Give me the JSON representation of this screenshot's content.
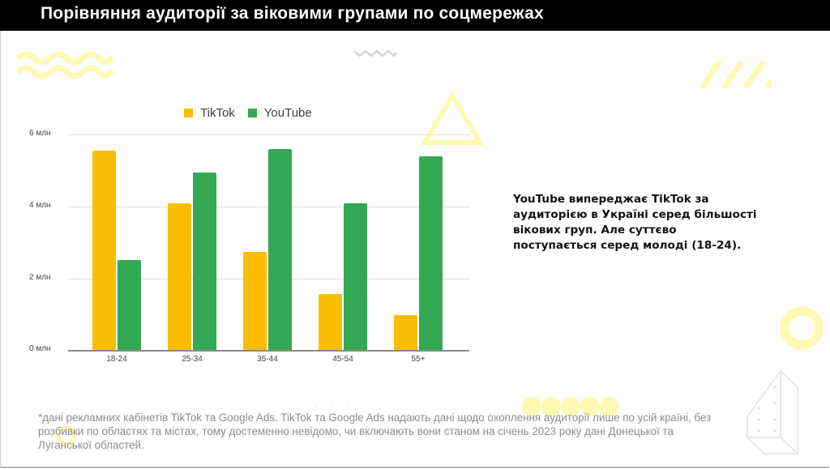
{
  "header": {
    "title": "Порівняння аудиторії за віковими групами по соцмережах"
  },
  "colors": {
    "tiktok": "#FBBC04",
    "youtube": "#34A853",
    "title_bar": "#000000",
    "decor_yellow": "#FFF9B3"
  },
  "chart_data": {
    "type": "bar",
    "title": "",
    "categories": [
      "18-24",
      "25-34",
      "35-44",
      "45-54",
      "55+"
    ],
    "series": [
      {
        "name": "TikTok",
        "color": "#FBBC04",
        "values": [
          5.55,
          4.08,
          2.72,
          1.55,
          0.97
        ]
      },
      {
        "name": "YouTube",
        "color": "#34A853",
        "values": [
          2.5,
          4.93,
          5.59,
          4.08,
          5.38
        ]
      }
    ],
    "xlabel": "",
    "ylabel": "",
    "unit": "млн",
    "ylim": [
      0,
      6
    ],
    "yticks": [
      "0 млн",
      "2 млн",
      "4 млн",
      "6 млн"
    ],
    "grid": true,
    "legend_position": "top"
  },
  "legend": {
    "items": [
      {
        "label": "TikTok"
      },
      {
        "label": "YouTube"
      }
    ]
  },
  "callout": {
    "lines": [
      "YouTube випереджає TikTok за",
      "аудиторією в Україні серед більшості",
      "вікових груп. Але суттєво",
      "поступається серед молоді (18-24)."
    ]
  },
  "footnote": {
    "lines": [
      "*дані рекламних кабінетів TikTok та Google Ads. TikTok та Google Ads надають дані щодо охоплення аудиторії лише по усій країні, без",
      "розбивки по областях та містах, тому достеменно невідомо, чи включають вони станом на січень 2023 року дані Донецької та",
      "Луганської областей."
    ]
  }
}
